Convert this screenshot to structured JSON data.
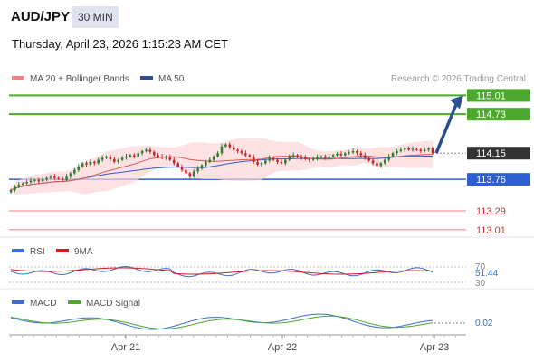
{
  "header": {
    "pair": "AUD/JPY",
    "timeframe": "30 MIN",
    "datetime": "Thursday, April 23, 2026 1:15:23 AM CET"
  },
  "legend": {
    "bb": "MA 20 + Bollinger Bands",
    "ma50": "MA 50",
    "copyright": "Research © 2026 Trading Central"
  },
  "colors": {
    "resistance": "#4ea72e",
    "pivot": "#2e5fd1",
    "support": "#f08080",
    "current": "#333333",
    "candle_up": "#2e7d32",
    "candle_down": "#c62828",
    "bollinger_fill": "#fbd5d5",
    "ma20": "#d65a5a",
    "ma50": "#2e5fd1",
    "rsi": "#3b6fd1",
    "rsi_ma": "#cc2020",
    "macd": "#3b6fd1",
    "macd_signal": "#4ea72e"
  },
  "chart_data": [
    {
      "type": "candlestick",
      "ylim": [
        112.9,
        115.15
      ],
      "x_ticks": [
        "Apr 21",
        "Apr 22",
        "Apr 23"
      ],
      "levels": [
        {
          "label": "115.01",
          "value": 115.01,
          "kind": "resistance"
        },
        {
          "label": "114.73",
          "value": 114.73,
          "kind": "resistance"
        },
        {
          "label": "114.15",
          "value": 114.15,
          "kind": "current"
        },
        {
          "label": "113.76",
          "value": 113.76,
          "kind": "pivot"
        },
        {
          "label": "113.29",
          "value": 113.29,
          "kind": "support"
        },
        {
          "label": "113.01",
          "value": 113.01,
          "kind": "support"
        }
      ],
      "close": [
        113.6,
        113.65,
        113.68,
        113.7,
        113.72,
        113.74,
        113.75,
        113.73,
        113.76,
        113.78,
        113.8,
        113.78,
        113.77,
        113.75,
        113.8,
        113.85,
        113.9,
        113.95,
        114.0,
        113.98,
        114.02,
        114.0,
        114.05,
        114.08,
        114.1,
        114.06,
        114.02,
        114.05,
        114.08,
        114.1,
        114.12,
        114.1,
        114.15,
        114.18,
        114.2,
        114.17,
        114.12,
        114.1,
        114.08,
        114.1,
        114.05,
        114.0,
        113.95,
        113.9,
        113.85,
        113.8,
        113.88,
        113.92,
        113.97,
        114.02,
        114.05,
        114.1,
        114.15,
        114.25,
        114.28,
        114.24,
        114.2,
        114.18,
        114.15,
        114.12,
        114.1,
        114.02,
        113.98,
        114.0,
        114.04,
        114.08,
        114.05,
        114.02,
        114.0,
        114.05,
        114.1,
        114.12,
        114.1,
        114.08,
        114.06,
        114.05,
        114.07,
        114.09,
        114.1,
        114.08,
        114.1,
        114.12,
        114.14,
        114.12,
        114.15,
        114.16,
        114.18,
        114.15,
        114.12,
        114.08,
        114.04,
        114.0,
        113.96,
        114.0,
        114.05,
        114.1,
        114.15,
        114.18,
        114.2,
        114.22,
        114.2,
        114.21,
        114.2,
        114.18,
        114.2,
        114.22,
        114.15
      ]
    },
    {
      "type": "line",
      "title": "RSI",
      "series": [
        {
          "name": "RSI"
        },
        {
          "name": "9MA"
        }
      ],
      "ticks": [
        "70",
        "30"
      ],
      "last_value": "51.44"
    },
    {
      "type": "line",
      "title": "MACD",
      "series": [
        {
          "name": "MACD"
        },
        {
          "name": "MACD Signal"
        }
      ],
      "last_value": "0.02"
    }
  ]
}
